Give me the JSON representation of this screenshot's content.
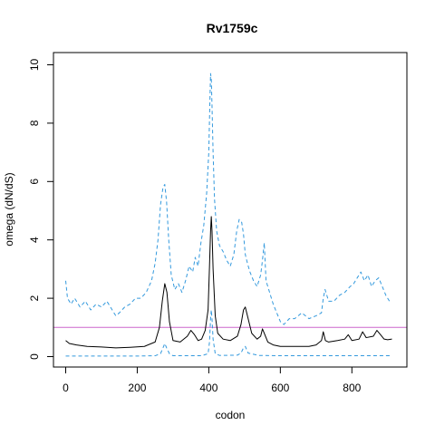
{
  "chart_data": {
    "type": "line",
    "title": "Rv1759c",
    "xlabel": "codon",
    "ylabel": "omega (dN/dS)",
    "xlim": [
      0,
      920
    ],
    "ylim": [
      0,
      10
    ],
    "xticks": [
      0,
      200,
      400,
      600,
      800
    ],
    "yticks": [
      0,
      2,
      4,
      6,
      8,
      10
    ],
    "reference_line": {
      "y": 1,
      "color": "#cc66cc"
    },
    "series": [
      {
        "style": "solid",
        "color": "#000000",
        "x": [
          0,
          10,
          30,
          60,
          100,
          140,
          180,
          220,
          250,
          262,
          270,
          277,
          283,
          290,
          300,
          320,
          340,
          350,
          360,
          370,
          380,
          390,
          398,
          402,
          405,
          407,
          409,
          412,
          418,
          425,
          440,
          460,
          480,
          490,
          497,
          502,
          510,
          520,
          535,
          545,
          550,
          555,
          565,
          580,
          600,
          640,
          680,
          700,
          715,
          720,
          726,
          735,
          760,
          780,
          790,
          800,
          820,
          830,
          840,
          860,
          870,
          880,
          890,
          900,
          912
        ],
        "y": [
          0.55,
          0.45,
          0.4,
          0.35,
          0.33,
          0.3,
          0.32,
          0.35,
          0.5,
          1.0,
          1.9,
          2.5,
          2.2,
          1.2,
          0.55,
          0.5,
          0.7,
          0.9,
          0.75,
          0.55,
          0.6,
          0.9,
          1.6,
          3.1,
          4.3,
          4.8,
          4.3,
          3.0,
          1.4,
          0.8,
          0.6,
          0.55,
          0.7,
          1.1,
          1.6,
          1.7,
          1.3,
          0.8,
          0.6,
          0.7,
          0.95,
          0.8,
          0.5,
          0.4,
          0.35,
          0.35,
          0.35,
          0.4,
          0.55,
          0.85,
          0.55,
          0.5,
          0.55,
          0.6,
          0.75,
          0.55,
          0.6,
          0.85,
          0.65,
          0.7,
          0.9,
          0.75,
          0.6,
          0.58,
          0.6
        ]
      },
      {
        "style": "dashed",
        "color": "#3399dd",
        "x": [
          0,
          5,
          15,
          25,
          40,
          55,
          70,
          85,
          100,
          115,
          130,
          140,
          150,
          165,
          180,
          195,
          210,
          225,
          240,
          250,
          258,
          265,
          272,
          277,
          282,
          288,
          295,
          305,
          315,
          325,
          335,
          345,
          355,
          362,
          370,
          378,
          386,
          394,
          400,
          403,
          405,
          407,
          409,
          412,
          416,
          422,
          430,
          440,
          450,
          460,
          470,
          478,
          485,
          492,
          497,
          502,
          508,
          515,
          525,
          535,
          545,
          550,
          555,
          560,
          570,
          580,
          590,
          600,
          610,
          625,
          640,
          660,
          680,
          700,
          715,
          720,
          725,
          735,
          750,
          765,
          780,
          795,
          805,
          815,
          825,
          835,
          845,
          855,
          865,
          875,
          885,
          895,
          905,
          912
        ],
        "y": [
          2.6,
          2.0,
          1.8,
          2.0,
          1.7,
          1.9,
          1.6,
          1.8,
          1.7,
          1.9,
          1.6,
          1.4,
          1.5,
          1.7,
          1.8,
          2.0,
          2.0,
          2.2,
          2.6,
          3.2,
          4.0,
          5.2,
          5.8,
          5.9,
          5.3,
          4.0,
          2.8,
          2.3,
          2.5,
          2.2,
          2.6,
          3.1,
          2.9,
          3.4,
          3.1,
          3.9,
          4.5,
          5.6,
          7.0,
          8.7,
          9.7,
          9.5,
          8.6,
          7.0,
          5.4,
          4.3,
          3.8,
          3.6,
          3.3,
          3.1,
          3.5,
          4.3,
          4.7,
          4.6,
          4.2,
          3.5,
          3.2,
          2.9,
          2.6,
          2.4,
          2.8,
          3.3,
          3.9,
          2.6,
          2.2,
          1.8,
          1.5,
          1.2,
          1.1,
          1.3,
          1.3,
          1.5,
          1.3,
          1.4,
          1.5,
          2.0,
          2.3,
          1.9,
          1.9,
          2.1,
          2.2,
          2.4,
          2.5,
          2.7,
          2.9,
          2.6,
          2.8,
          2.4,
          2.6,
          2.7,
          2.4,
          2.1,
          1.9,
          1.9
        ]
      },
      {
        "style": "dashed",
        "color": "#3399dd",
        "x": [
          0,
          100,
          200,
          250,
          265,
          272,
          277,
          282,
          290,
          300,
          340,
          380,
          398,
          402,
          405,
          407,
          409,
          412,
          418,
          430,
          480,
          490,
          497,
          502,
          510,
          540,
          600,
          700,
          800,
          912
        ],
        "y": [
          0.02,
          0.02,
          0.02,
          0.03,
          0.1,
          0.3,
          0.45,
          0.3,
          0.1,
          0.03,
          0.03,
          0.03,
          0.1,
          0.5,
          1.3,
          1.6,
          1.3,
          0.6,
          0.1,
          0.04,
          0.05,
          0.12,
          0.3,
          0.35,
          0.12,
          0.04,
          0.03,
          0.03,
          0.03,
          0.03
        ]
      }
    ]
  }
}
